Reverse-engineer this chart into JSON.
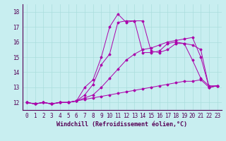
{
  "xlabel": "Windchill (Refroidissement éolien,°C)",
  "bg_color": "#c8eef0",
  "line_color": "#aa00aa",
  "xlim": [
    -0.5,
    23.5
  ],
  "ylim": [
    11.5,
    18.5
  ],
  "xticks": [
    0,
    1,
    2,
    3,
    4,
    5,
    6,
    7,
    8,
    9,
    10,
    11,
    12,
    13,
    14,
    15,
    16,
    17,
    18,
    19,
    20,
    21,
    22,
    23
  ],
  "yticks": [
    12,
    13,
    14,
    15,
    16,
    17,
    18
  ],
  "grid_color": "#aadddd",
  "line1_x": [
    0,
    1,
    2,
    3,
    4,
    5,
    6,
    7,
    8,
    9,
    10,
    11,
    12,
    13,
    14,
    15,
    16,
    17,
    18,
    19,
    20,
    21,
    22,
    23
  ],
  "line1_y": [
    12.0,
    11.9,
    12.0,
    11.9,
    12.0,
    12.0,
    12.1,
    12.2,
    12.3,
    12.4,
    12.5,
    12.6,
    12.7,
    12.8,
    12.9,
    13.0,
    13.1,
    13.2,
    13.3,
    13.4,
    13.4,
    13.5,
    13.0,
    13.1
  ],
  "line2_x": [
    0,
    1,
    2,
    3,
    4,
    5,
    6,
    7,
    8,
    9,
    10,
    11,
    12,
    13,
    14,
    15,
    16,
    17,
    18,
    19,
    20,
    21,
    22,
    23
  ],
  "line2_y": [
    12.0,
    11.9,
    12.0,
    11.9,
    12.0,
    12.0,
    12.1,
    12.3,
    12.5,
    13.0,
    13.6,
    14.2,
    14.8,
    15.2,
    15.5,
    15.6,
    15.8,
    16.0,
    16.1,
    16.2,
    16.3,
    15.0,
    13.0,
    13.1
  ],
  "line3_x": [
    0,
    1,
    2,
    3,
    4,
    5,
    6,
    7,
    8,
    9,
    10,
    11,
    12,
    13,
    14,
    15,
    16,
    17,
    18,
    19,
    20,
    21,
    22,
    23
  ],
  "line3_y": [
    12.0,
    11.9,
    12.0,
    11.9,
    12.0,
    12.0,
    12.1,
    12.5,
    13.2,
    14.5,
    15.2,
    17.3,
    17.4,
    17.4,
    17.4,
    15.4,
    15.3,
    15.5,
    15.9,
    15.9,
    15.8,
    15.5,
    13.0,
    13.1
  ],
  "line4_x": [
    0,
    1,
    2,
    3,
    4,
    5,
    6,
    7,
    8,
    9,
    10,
    11,
    12,
    13,
    14,
    15,
    16,
    17,
    18,
    19,
    20,
    21,
    22,
    23
  ],
  "line4_y": [
    12.0,
    11.9,
    12.0,
    11.9,
    12.0,
    12.0,
    12.1,
    13.0,
    13.5,
    15.0,
    17.0,
    17.85,
    17.3,
    17.4,
    15.3,
    15.3,
    15.4,
    15.9,
    16.0,
    15.9,
    14.8,
    13.6,
    13.1,
    13.1
  ],
  "xlabel_fontsize": 6.0,
  "tick_fontsize": 5.5
}
